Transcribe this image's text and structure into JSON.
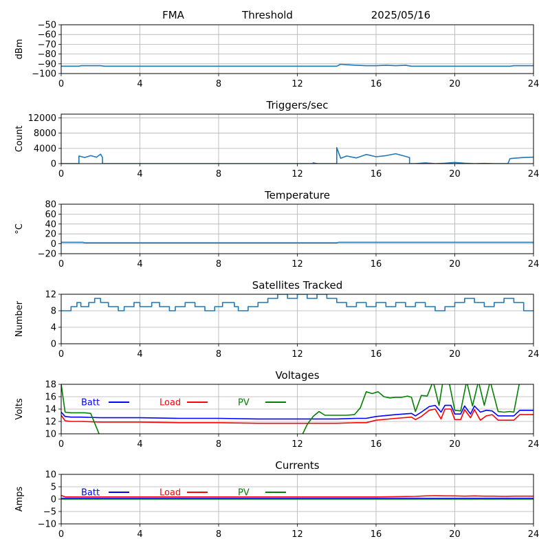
{
  "header": {
    "left": "FMA",
    "center": "Threshold",
    "right": "2025/05/16"
  },
  "colors": {
    "series": "#1f77b4",
    "batt": "#0000ff",
    "load": "#ff0000",
    "pv": "#008000",
    "grid": "#b0b0b0"
  },
  "chart_data": [
    {
      "type": "line",
      "title": "",
      "ylabel": "dBm",
      "xlim": [
        0,
        24
      ],
      "ylim": [
        -100,
        -50
      ],
      "xticks": [
        "0",
        "4",
        "8",
        "12",
        "16",
        "20",
        "24"
      ],
      "yticks": [
        "−100",
        "−90",
        "−80",
        "−70",
        "−60",
        "−50"
      ],
      "ytick_values": [
        -100,
        -90,
        -80,
        -70,
        -60,
        -50
      ],
      "grid": true,
      "series": [
        {
          "color": "#1f77b4",
          "x": [
            0,
            0.9,
            1.0,
            2.0,
            2.2,
            14,
            14.2,
            14.5,
            15,
            15.5,
            16,
            16.5,
            17,
            17.5,
            17.8,
            18,
            22.8,
            23,
            24
          ],
          "y": [
            -92.5,
            -92.5,
            -92,
            -92,
            -92.5,
            -92.5,
            -90.5,
            -91,
            -91.5,
            -92,
            -92,
            -91.5,
            -92,
            -91.5,
            -92.5,
            -92.5,
            -92.5,
            -92,
            -92
          ]
        }
      ]
    },
    {
      "type": "line",
      "title": "Triggers/sec",
      "ylabel": "Count",
      "xlim": [
        0,
        24
      ],
      "ylim": [
        0,
        13000
      ],
      "xticks": [
        "0",
        "4",
        "8",
        "12",
        "16",
        "20",
        "24"
      ],
      "yticks": [
        "0",
        "4000",
        "8000",
        "12000"
      ],
      "ytick_values": [
        0,
        4000,
        8000,
        12000
      ],
      "grid": true,
      "series": [
        {
          "color": "#1f77b4",
          "x": [
            0,
            0.9,
            0.9,
            1.2,
            1.5,
            1.8,
            2.0,
            2.1,
            2.1,
            12.8,
            12.8,
            13,
            14,
            14,
            14.2,
            14.5,
            15,
            15.5,
            16,
            16.5,
            17,
            17.5,
            17.7,
            17.7,
            18,
            18.5,
            19,
            19.5,
            20,
            20.5,
            21,
            21.5,
            22,
            22.7,
            22.8,
            23,
            23.5,
            24
          ],
          "y": [
            0,
            0,
            2000,
            1600,
            2100,
            1700,
            2500,
            1600,
            0,
            0,
            200,
            0,
            0,
            4200,
            1400,
            2000,
            1500,
            2400,
            1800,
            2100,
            2600,
            1900,
            1600,
            0,
            0,
            200,
            0,
            100,
            300,
            100,
            0,
            50,
            0,
            0,
            1300,
            1400,
            1600,
            1700
          ]
        }
      ]
    },
    {
      "type": "line",
      "title": "Temperature",
      "ylabel": "°C",
      "xlim": [
        0,
        24
      ],
      "ylim": [
        -20,
        80
      ],
      "xticks": [
        "0",
        "4",
        "8",
        "12",
        "16",
        "20",
        "24"
      ],
      "yticks": [
        "−20",
        "0",
        "20",
        "40",
        "60",
        "80"
      ],
      "ytick_values": [
        -20,
        0,
        20,
        40,
        60,
        80
      ],
      "grid": true,
      "series": [
        {
          "color": "#1f77b4",
          "x": [
            0,
            1.1,
            1.2,
            14,
            14.1,
            24
          ],
          "y": [
            3,
            3,
            2,
            2,
            3,
            3
          ]
        }
      ]
    },
    {
      "type": "line",
      "title": "Satellites Tracked",
      "ylabel": "Number",
      "xlim": [
        0,
        24
      ],
      "ylim": [
        0,
        12
      ],
      "xticks": [
        "0",
        "4",
        "8",
        "12",
        "16",
        "20",
        "24"
      ],
      "yticks": [
        "0",
        "4",
        "8",
        "12"
      ],
      "ytick_values": [
        0,
        4,
        8,
        12
      ],
      "grid": true,
      "series": [
        {
          "color": "#1f77b4",
          "x": [
            0,
            0.5,
            0.5,
            0.8,
            0.8,
            1.0,
            1.0,
            1.4,
            1.4,
            1.7,
            1.7,
            2.0,
            2.0,
            2.4,
            2.4,
            2.9,
            2.9,
            3.2,
            3.2,
            3.7,
            3.7,
            4.0,
            4.0,
            4.6,
            4.6,
            5.0,
            5.0,
            5.5,
            5.5,
            5.8,
            5.8,
            6.3,
            6.3,
            6.8,
            6.8,
            7.3,
            7.3,
            7.8,
            7.8,
            8.2,
            8.2,
            8.8,
            8.8,
            9.0,
            9.0,
            9.5,
            9.5,
            10.0,
            10.0,
            10.5,
            10.5,
            11.0,
            11.0,
            11.5,
            11.5,
            12.0,
            12.0,
            12.5,
            12.5,
            13.0,
            13.0,
            13.5,
            13.5,
            14.0,
            14.0,
            14.5,
            14.5,
            15.0,
            15.0,
            15.5,
            15.5,
            16.0,
            16.0,
            16.5,
            16.5,
            17.0,
            17.0,
            17.5,
            17.5,
            18.0,
            18.0,
            18.5,
            18.5,
            19.0,
            19.0,
            19.5,
            19.5,
            20.0,
            20.0,
            20.5,
            20.5,
            21.0,
            21.0,
            21.5,
            21.5,
            22.0,
            22.0,
            22.5,
            22.5,
            23.0,
            23.0,
            23.5,
            23.5,
            24
          ],
          "y": [
            8,
            8,
            9,
            9,
            10,
            10,
            9,
            9,
            10,
            10,
            11,
            11,
            10,
            10,
            9,
            9,
            8,
            8,
            9,
            9,
            10,
            10,
            9,
            9,
            10,
            10,
            9,
            9,
            8,
            8,
            9,
            9,
            10,
            10,
            9,
            9,
            8,
            8,
            9,
            9,
            10,
            10,
            9,
            9,
            8,
            8,
            9,
            9,
            10,
            10,
            11,
            11,
            12,
            12,
            11,
            11,
            12,
            12,
            11,
            11,
            12,
            12,
            11,
            11,
            10,
            10,
            9,
            9,
            10,
            10,
            9,
            9,
            10,
            10,
            9,
            9,
            10,
            10,
            9,
            9,
            10,
            10,
            9,
            9,
            8,
            8,
            9,
            9,
            10,
            10,
            11,
            11,
            10,
            10,
            9,
            9,
            10,
            10,
            11,
            11,
            10,
            10,
            8,
            8
          ]
        }
      ]
    },
    {
      "type": "line",
      "title": "Voltages",
      "ylabel": "Volts",
      "xlim": [
        0,
        24
      ],
      "ylim": [
        10,
        18
      ],
      "xticks": [
        "0",
        "4",
        "8",
        "12",
        "16",
        "20",
        "24"
      ],
      "yticks": [
        "10",
        "12",
        "14",
        "16",
        "18"
      ],
      "ytick_values": [
        10,
        12,
        14,
        16,
        18
      ],
      "grid": true,
      "legend": "inline-top-left",
      "series": [
        {
          "name": "Batt",
          "color": "#0000ff",
          "x": [
            0,
            0.2,
            0.5,
            1,
            2,
            4,
            6,
            8,
            10,
            12,
            14,
            15,
            15.5,
            16,
            17,
            17.8,
            18,
            18.3,
            18.7,
            19,
            19.3,
            19.5,
            19.8,
            20,
            20.3,
            20.5,
            20.8,
            21,
            21.3,
            21.6,
            21.9,
            22.2,
            23,
            23.3,
            24
          ],
          "y": [
            13.5,
            12.8,
            12.7,
            12.7,
            12.6,
            12.6,
            12.5,
            12.5,
            12.4,
            12.4,
            12.4,
            12.5,
            12.5,
            12.8,
            13.1,
            13.3,
            12.9,
            13.5,
            14.4,
            14.6,
            13.5,
            14.6,
            14.6,
            13.2,
            13.2,
            14.5,
            13.2,
            14.5,
            13.5,
            13.8,
            13.7,
            12.9,
            12.9,
            13.8,
            13.8
          ]
        },
        {
          "name": "Load",
          "color": "#ff0000",
          "x": [
            0,
            0.2,
            0.5,
            1,
            2,
            4,
            6,
            8,
            10,
            12,
            14,
            15,
            15.5,
            16,
            17,
            17.8,
            18,
            18.3,
            18.7,
            19,
            19.3,
            19.5,
            19.8,
            20,
            20.3,
            20.5,
            20.8,
            21,
            21.3,
            21.6,
            21.9,
            22.2,
            23,
            23.3,
            24
          ],
          "y": [
            13,
            12.1,
            12,
            12,
            11.9,
            11.9,
            11.8,
            11.8,
            11.7,
            11.7,
            11.7,
            11.8,
            11.8,
            12.2,
            12.5,
            12.7,
            12.3,
            12.8,
            13.8,
            14,
            12.4,
            14,
            14,
            12.3,
            12.3,
            13.9,
            12.6,
            13.9,
            12.2,
            12.9,
            13.1,
            12.2,
            12.2,
            13.1,
            13.1
          ]
        },
        {
          "name": "PV",
          "color": "#008000",
          "x": [
            0,
            0.2,
            0.5,
            1,
            1.2,
            1.5,
            2,
            12.2,
            12.5,
            12.8,
            13.1,
            13.4,
            14.5,
            14.9,
            15.2,
            15.5,
            15.8,
            16.1,
            16.4,
            16.7,
            17,
            17.3,
            17.6,
            17.8,
            18,
            18.3,
            18.6,
            18.9,
            19.2,
            19.4,
            19.7,
            20,
            20.3,
            20.6,
            20.9,
            21.2,
            21.5,
            21.8,
            22.2,
            22.5,
            22.8,
            23,
            23.3
          ],
          "y": [
            18,
            13.5,
            13.4,
            13.4,
            13.4,
            13.3,
            9.4,
            9.5,
            11.5,
            12.8,
            13.6,
            13,
            13,
            13.1,
            14.2,
            16.8,
            16.5,
            16.8,
            16,
            15.8,
            15.9,
            15.9,
            16.1,
            15.9,
            13.6,
            16.2,
            16.1,
            18.5,
            14.6,
            18.5,
            18.5,
            13.8,
            13.7,
            18.5,
            14.5,
            18.5,
            14.6,
            18.5,
            13.6,
            13.5,
            13.6,
            13.5,
            18.5
          ]
        }
      ]
    },
    {
      "type": "line",
      "title": "Currents",
      "ylabel": "Amps",
      "xlim": [
        0,
        24
      ],
      "ylim": [
        -10,
        10
      ],
      "xticks": [
        "0",
        "4",
        "8",
        "12",
        "16",
        "20",
        "24"
      ],
      "yticks": [
        "−10",
        "−5",
        "0",
        "5",
        "10"
      ],
      "ytick_values": [
        -10,
        -5,
        0,
        5,
        10
      ],
      "grid": true,
      "legend": "inline-top-left",
      "series": [
        {
          "name": "Batt",
          "color": "#0000ff",
          "x": [
            0,
            24
          ],
          "y": [
            0.3,
            0.3
          ]
        },
        {
          "name": "Load",
          "color": "#ff0000",
          "x": [
            0,
            0.2,
            2,
            16,
            17,
            18,
            18.5,
            19,
            19.5,
            20,
            20.5,
            21,
            21.5,
            22,
            22.5,
            23,
            24
          ],
          "y": [
            1.5,
            0.9,
            0.9,
            0.9,
            1.0,
            1.1,
            1.3,
            1.4,
            1.3,
            1.3,
            1.2,
            1.3,
            1.2,
            1.2,
            1.1,
            1.2,
            1.2
          ]
        },
        {
          "name": "PV",
          "color": "#008000",
          "x": [
            0,
            24
          ],
          "y": [
            0,
            0
          ]
        }
      ]
    }
  ]
}
